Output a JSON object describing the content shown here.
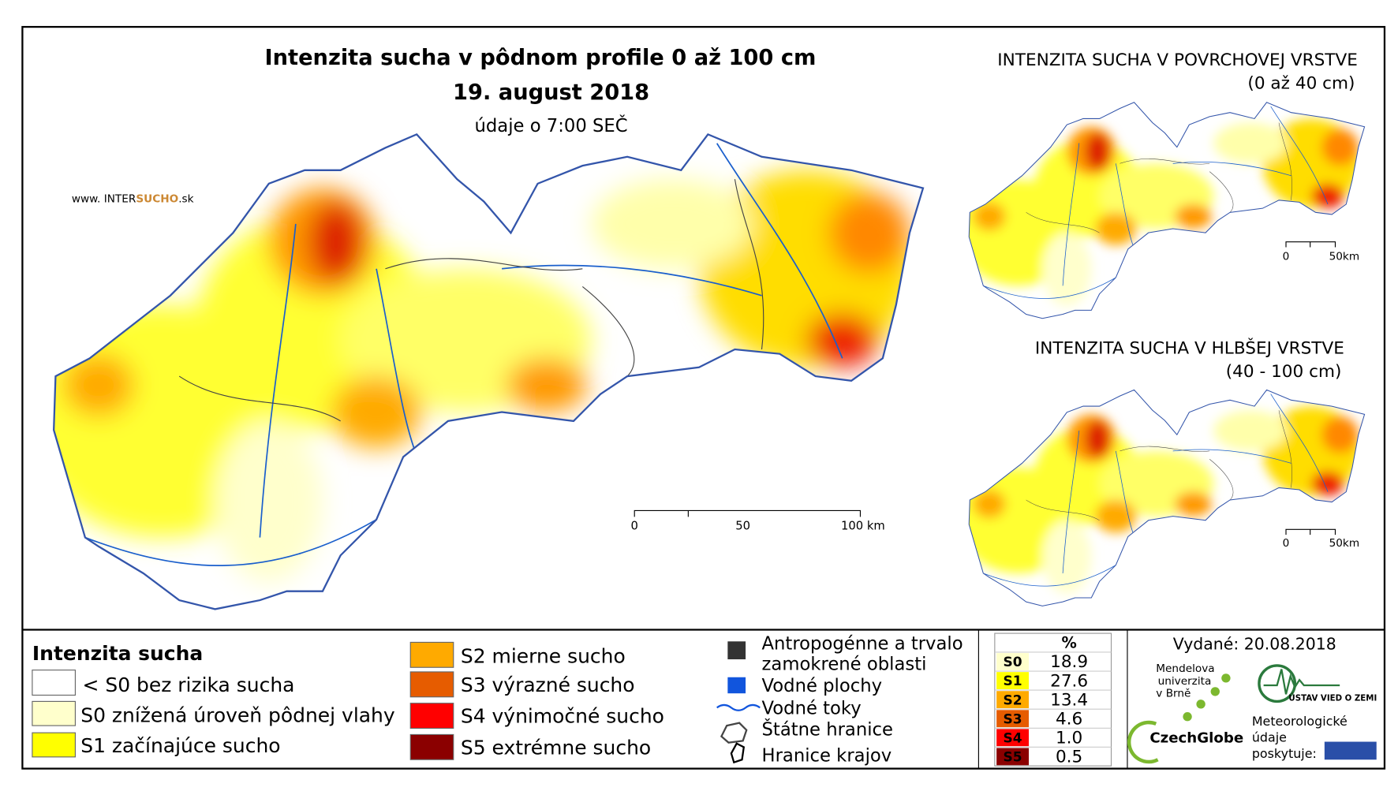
{
  "main_map": {
    "title": "Intenzita sucha v pôdnom profile 0 až 100 cm",
    "date": "19. august 2018",
    "time_note": "údaje o 7:00 SEČ",
    "website": [
      "www. INTER",
      "SUCHO",
      ".sk"
    ],
    "scale_labels": [
      "0",
      "50",
      "100 km"
    ]
  },
  "inset_surface": {
    "title": "INTENZITA SUCHA V POVRCHOVEJ VRSTVE",
    "subtitle": "(0 až 40 cm)",
    "scale_labels": [
      "0",
      "50km"
    ]
  },
  "inset_deep": {
    "title": "INTENZITA SUCHA V HLBŠEJ VRSTVE",
    "subtitle": "(40 - 100 cm)",
    "scale_labels": [
      "0",
      "50km"
    ]
  },
  "legend": {
    "title": "Intenzita sucha",
    "classes": [
      "< S0 bez rizika sucha",
      "S0 znížená úroveň pôdnej vlahy",
      "S1 začínajúce sucho",
      "S2 mierne sucho",
      "S3 výrazné sucho",
      "S4 výnimočné sucho",
      "S5 extrémne sucho"
    ],
    "features": [
      [
        "Antropogénne a trvalo",
        "zamokrené oblasti"
      ],
      [
        "Vodné plochy"
      ],
      [
        "Vodné toky"
      ],
      [
        "Štátne hranice"
      ],
      [
        "Hranice krajov"
      ]
    ]
  },
  "stats_table": {
    "header": "%",
    "rows": [
      [
        "S0",
        "18.9"
      ],
      [
        "S1",
        "27.6"
      ],
      [
        "S2",
        "13.4"
      ],
      [
        "S3",
        "4.6"
      ],
      [
        "S4",
        "1.0"
      ],
      [
        "S5",
        "0.5"
      ]
    ]
  },
  "footer": {
    "issued": "Vydané: 20.08.2018",
    "university": [
      "Mendelova",
      "univerzita",
      "v Brně"
    ],
    "czechglobe": "CzechGlobe",
    "institute": "ÚSTAV VIED O ZEMI",
    "provider": [
      "Meteorologické",
      "údaje",
      "poskytuje:"
    ]
  }
}
